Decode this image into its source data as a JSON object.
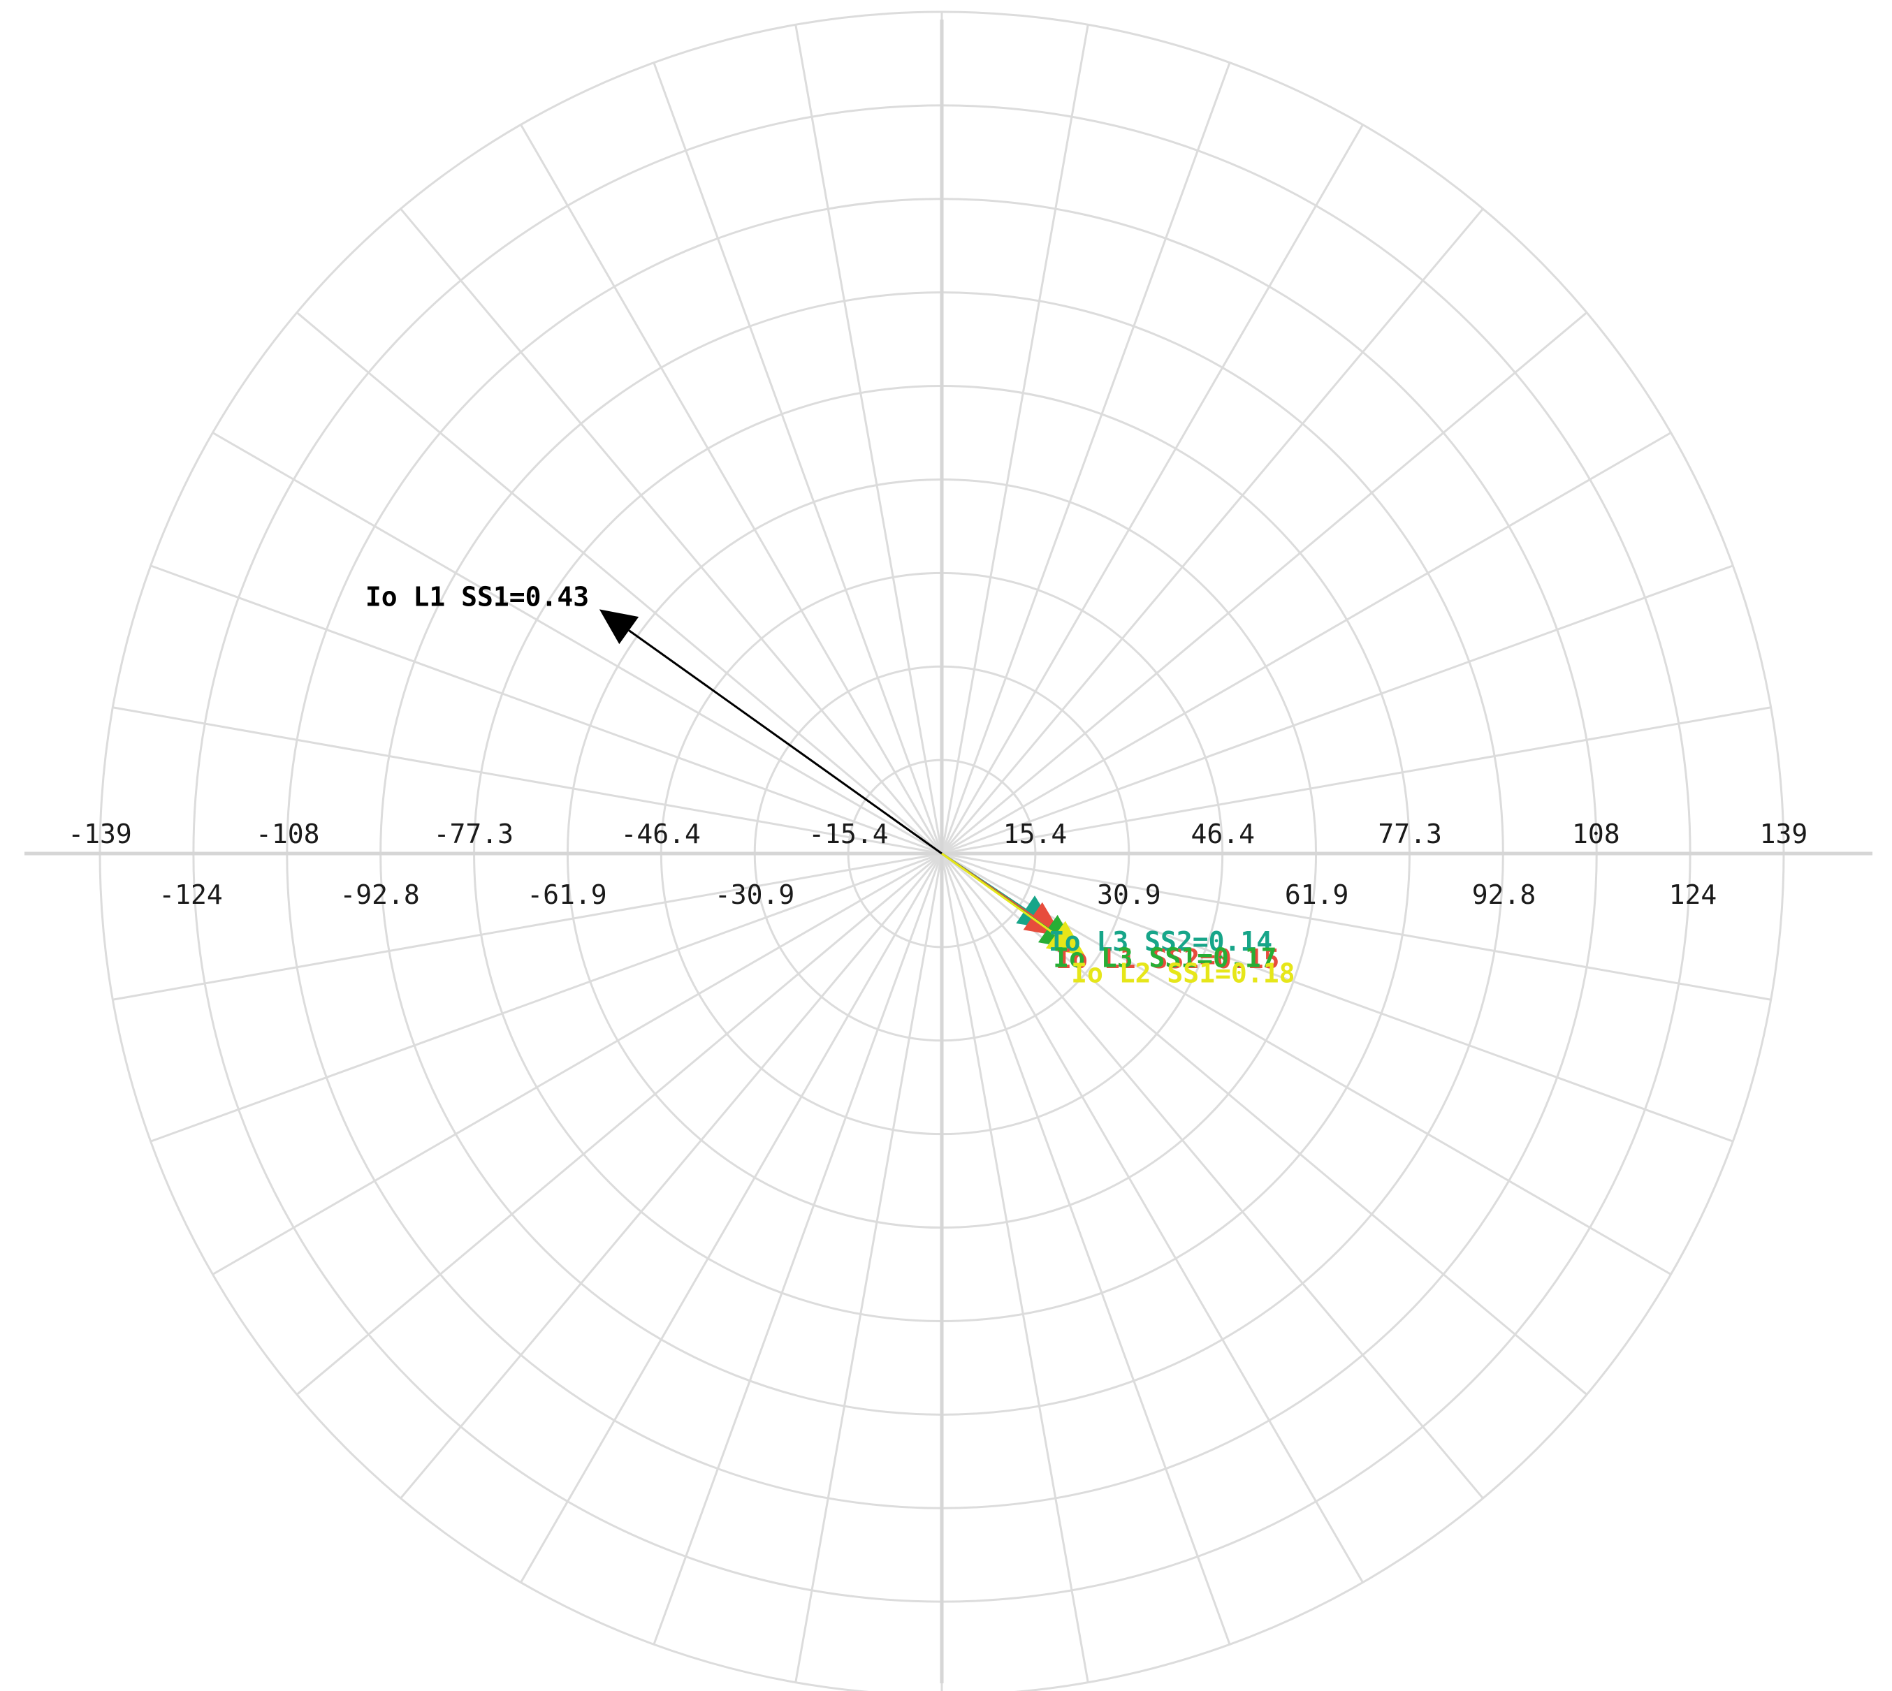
{
  "chart_data": {
    "type": "polar-phasor",
    "title": "",
    "xlabel": "",
    "ylabel": "",
    "rmax": 139,
    "rings": 9,
    "spoke_step_deg": 10,
    "grid": true,
    "x_tick_labels_upper": [
      "-139",
      "-108",
      "-77.3",
      "-46.4",
      "-15.4",
      "15.4",
      "46.4",
      "77.3",
      "108",
      "139"
    ],
    "x_tick_labels_lower": [
      "-124",
      "-92.8",
      "-61.9",
      "-30.9",
      "30.9",
      "61.9",
      "92.8",
      "124"
    ],
    "x_tick_values_upper": [
      -139,
      -108,
      -77.3,
      -46.4,
      -15.4,
      15.4,
      46.4,
      77.3,
      108,
      139
    ],
    "x_tick_values_lower": [
      -124,
      -92.8,
      -61.9,
      -30.9,
      30.9,
      61.9,
      92.8,
      124
    ],
    "series": [
      {
        "label": "Io L1 SS1=0.43",
        "magnitude": 0.43,
        "angle_deg": 144.5,
        "color": "#000000"
      },
      {
        "label": "Io L3 SS2=0.14",
        "magnitude": 0.14,
        "angle_deg": -33.8,
        "color": "#17a589"
      },
      {
        "label": "Io L1 SS2=0.15",
        "magnitude": 0.15,
        "angle_deg": -34.5,
        "color": "#e74c3c"
      },
      {
        "label": "Io L3 SS1=0.17",
        "magnitude": 0.17,
        "angle_deg": -35.3,
        "color": "#27ae35"
      },
      {
        "label": "Io L2 SS1=0.18",
        "magnitude": 0.18,
        "angle_deg": -35.5,
        "color": "#e6e619"
      }
    ]
  }
}
